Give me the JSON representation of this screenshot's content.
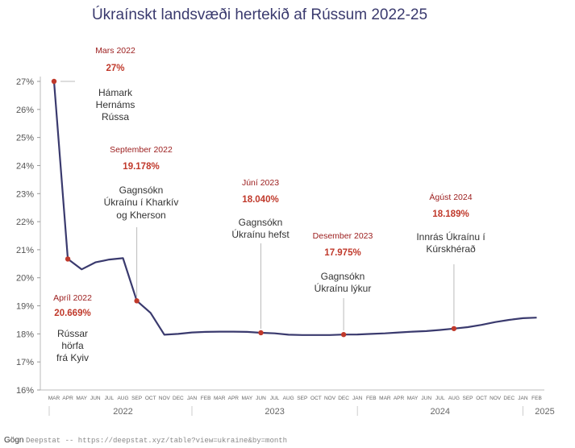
{
  "chart_data": {
    "type": "line",
    "title": "Úkraínskt landsvæði hertekið af Rússum 2022-25",
    "ylim": [
      16,
      27
    ],
    "y_ticks": [
      "16%",
      "17%",
      "18%",
      "19%",
      "20%",
      "21%",
      "22%",
      "23%",
      "24%",
      "25%",
      "26%",
      "27%"
    ],
    "grid": false,
    "x_tick_labels": [
      "MAR",
      "APR",
      "MAY",
      "JUN",
      "JUL",
      "AUG",
      "SEP",
      "OCT",
      "NOV",
      "DEC",
      "JAN",
      "FEB",
      "MAR",
      "APR",
      "MAY",
      "JUN",
      "JUL",
      "AUG",
      "SEP",
      "OCT",
      "NOV",
      "DEC",
      "JAN",
      "FEB",
      "MAR",
      "APR",
      "MAY",
      "JUN",
      "JUL",
      "AUG",
      "SEP",
      "OCT",
      "NOV",
      "DEC",
      "JAN",
      "FEB"
    ],
    "years": [
      {
        "label": "2022",
        "start": 0,
        "end": 10
      },
      {
        "label": "2023",
        "start": 10,
        "end": 22
      },
      {
        "label": "2024",
        "start": 22,
        "end": 34
      },
      {
        "label": "2025",
        "start": 34,
        "end": 35
      }
    ],
    "series": [
      {
        "color": "#3a3a6e",
        "points": [
          {
            "x": "2022-03",
            "y": 27.0
          },
          {
            "x": "2022-04",
            "y": 20.669
          },
          {
            "x": "2022-05",
            "y": 20.3
          },
          {
            "x": "2022-06",
            "y": 20.55
          },
          {
            "x": "2022-07",
            "y": 20.65
          },
          {
            "x": "2022-08",
            "y": 20.7
          },
          {
            "x": "2022-09",
            "y": 19.178
          },
          {
            "x": "2022-10",
            "y": 18.75
          },
          {
            "x": "2022-11",
            "y": 17.97
          },
          {
            "x": "2022-12",
            "y": 18.0
          },
          {
            "x": "2023-01",
            "y": 18.05
          },
          {
            "x": "2023-02",
            "y": 18.07
          },
          {
            "x": "2023-03",
            "y": 18.08
          },
          {
            "x": "2023-04",
            "y": 18.08
          },
          {
            "x": "2023-05",
            "y": 18.07
          },
          {
            "x": "2023-06",
            "y": 18.04
          },
          {
            "x": "2023-07",
            "y": 18.02
          },
          {
            "x": "2023-08",
            "y": 17.97
          },
          {
            "x": "2023-09",
            "y": 17.96
          },
          {
            "x": "2023-10",
            "y": 17.96
          },
          {
            "x": "2023-11",
            "y": 17.96
          },
          {
            "x": "2023-12",
            "y": 17.975
          },
          {
            "x": "2024-01",
            "y": 17.98
          },
          {
            "x": "2024-02",
            "y": 18.0
          },
          {
            "x": "2024-03",
            "y": 18.02
          },
          {
            "x": "2024-04",
            "y": 18.05
          },
          {
            "x": "2024-05",
            "y": 18.08
          },
          {
            "x": "2024-06",
            "y": 18.1
          },
          {
            "x": "2024-07",
            "y": 18.14
          },
          {
            "x": "2024-08",
            "y": 18.189
          },
          {
            "x": "2024-09",
            "y": 18.24
          },
          {
            "x": "2024-10",
            "y": 18.32
          },
          {
            "x": "2024-11",
            "y": 18.42
          },
          {
            "x": "2024-12",
            "y": 18.5
          },
          {
            "x": "2025-01",
            "y": 18.56
          },
          {
            "x": "2025-02",
            "y": 18.58
          }
        ],
        "marker_color": "#c0392b",
        "marked_points": [
          "2022-03",
          "2022-04",
          "2022-09",
          "2023-06",
          "2023-12",
          "2024-08"
        ]
      }
    ],
    "annotations": [
      {
        "date": "Mars 2022",
        "value": "27%",
        "text": [
          "Hámark",
          "Hernáms",
          "Rússa"
        ],
        "x": "2022-03",
        "y": 27.0
      },
      {
        "date": "Apríl 2022",
        "value": "20.669%",
        "text": [
          "Rússar",
          "hörfa",
          "frá Kyiv"
        ],
        "x": "2022-04",
        "y": 20.669
      },
      {
        "date": "September 2022",
        "value": "19.178%",
        "text": [
          "Gagnsókn",
          "Úkraínu í Kharkív",
          "og Kherson"
        ],
        "x": "2022-09",
        "y": 19.178
      },
      {
        "date": "Júní 2023",
        "value": "18.040%",
        "text": [
          "Gagnsókn",
          "Úkraínu hefst"
        ],
        "x": "2023-06",
        "y": 18.04
      },
      {
        "date": "Desember 2023",
        "value": "17.975%",
        "text": [
          "Gagnsókn",
          "Úkraínu lýkur"
        ],
        "x": "2023-12",
        "y": 17.975
      },
      {
        "date": "Ágúst 2024",
        "value": "18.189%",
        "text": [
          "Innrás Úkraínu í",
          "Kúrskhérað"
        ],
        "x": "2024-08",
        "y": 18.189
      }
    ]
  },
  "source": {
    "label": "Gögn",
    "text": "Deepstat -- https://deepstat.xyz/table?view=ukraine&by=month"
  },
  "colors": {
    "line": "#3a3a6e",
    "marker": "#c0392b",
    "annotation_date": "#9b1c1c",
    "annotation_value": "#c0392b",
    "axis": "#888888"
  }
}
